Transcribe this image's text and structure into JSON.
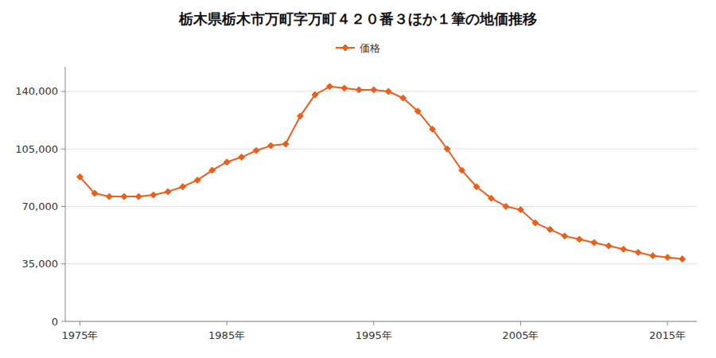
{
  "chart_data": {
    "type": "line",
    "title": "栃木県栃木市万町字万町４２０番３ほか１筆の地価推移",
    "x": [
      1975,
      1976,
      1977,
      1978,
      1979,
      1980,
      1981,
      1982,
      1983,
      1984,
      1985,
      1986,
      1987,
      1988,
      1989,
      1990,
      1991,
      1992,
      1993,
      1994,
      1995,
      1996,
      1997,
      1998,
      1999,
      2000,
      2001,
      2002,
      2003,
      2004,
      2005,
      2006,
      2007,
      2008,
      2009,
      2010,
      2011,
      2012,
      2013,
      2014,
      2015,
      2016
    ],
    "series": [
      {
        "name": "価格",
        "color": "#e8601c",
        "marker": "diamond",
        "values": [
          88000,
          78000,
          76000,
          76000,
          76000,
          77000,
          79000,
          82000,
          86000,
          92000,
          97000,
          100000,
          104000,
          107000,
          108000,
          125000,
          138000,
          143000,
          142000,
          141000,
          141000,
          140000,
          136000,
          128000,
          117000,
          105000,
          92000,
          82000,
          75000,
          70000,
          68000,
          60000,
          56000,
          52000,
          50000,
          48000,
          46000,
          44000,
          42000,
          40000,
          39000,
          38000
        ]
      }
    ],
    "xlim": [
      1974,
      2017
    ],
    "xticks": [
      {
        "value": 1975,
        "label": "1975年"
      },
      {
        "value": 1985,
        "label": "1985年"
      },
      {
        "value": 1995,
        "label": "1995年"
      },
      {
        "value": 2005,
        "label": "2005年"
      },
      {
        "value": 2015,
        "label": "2015年"
      }
    ],
    "ylim": [
      0,
      155000
    ],
    "yticks": [
      0,
      {
        "value": 35000,
        "label": "35,000"
      },
      {
        "value": 70000,
        "label": "70,000"
      },
      {
        "value": 105000,
        "label": "105,000"
      },
      {
        "value": 140000,
        "label": "140,000"
      }
    ],
    "grid": true,
    "legend": "top"
  }
}
